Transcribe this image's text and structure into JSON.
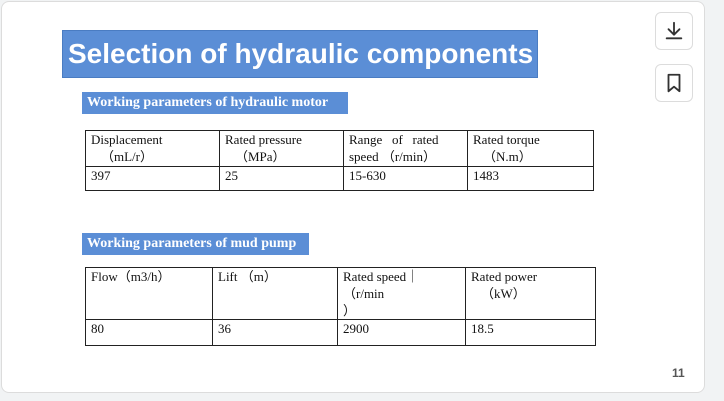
{
  "title": "Selection of hydraulic components",
  "motor_section": {
    "label": "Working parameters of hydraulic motor",
    "headers": [
      [
        "Displacement",
        "（mL/r）"
      ],
      [
        "Rated pressure",
        "（MPa）"
      ],
      [
        "Range   of   rated",
        "speed （r/min）"
      ],
      [
        "Rated torque",
        "（N.m）"
      ]
    ],
    "values": [
      "397",
      "25",
      "15-630",
      "1483"
    ]
  },
  "pump_section": {
    "label": "Working parameters of mud pump",
    "headers": [
      [
        "Flow（m3/h）",
        ""
      ],
      [
        "Lift （m）",
        ""
      ],
      [
        "Rated speed｜（r/min",
        "）"
      ],
      [
        "Rated power",
        "（kW）"
      ]
    ],
    "values": [
      "80",
      "36",
      "2900",
      "18.5"
    ]
  },
  "page_number": "11",
  "toolbar": {
    "download_icon": "download-icon",
    "bookmark_icon": "bookmark-icon"
  }
}
